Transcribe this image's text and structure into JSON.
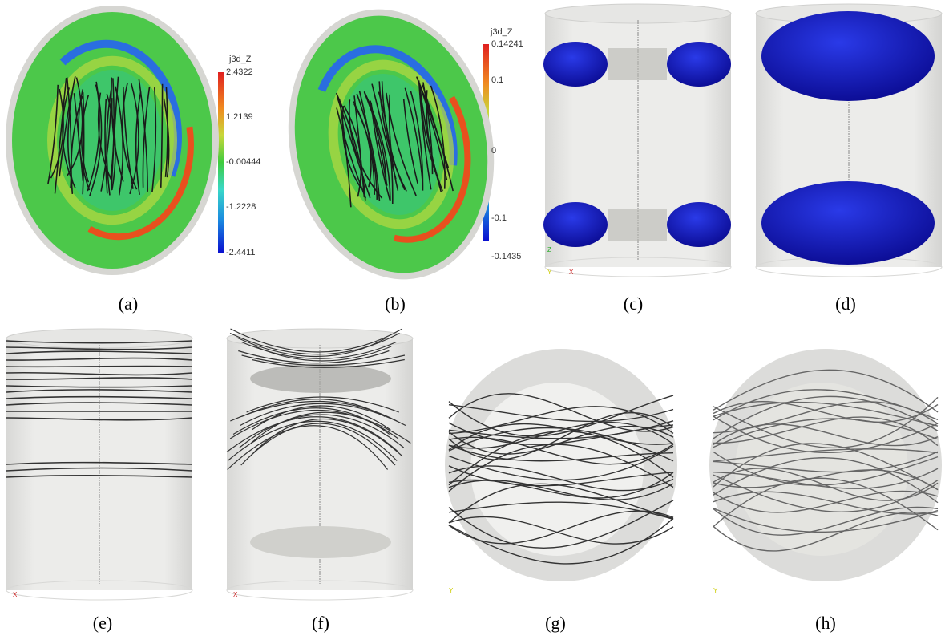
{
  "panels": [
    {
      "caption": "(a)",
      "colorbar": {
        "title": "j3d_Z",
        "labels": [
          "2.4322",
          "1.2139",
          "-0.00444",
          "-1.2228",
          "-2.4411"
        ]
      }
    },
    {
      "caption": "(b)",
      "colorbar": {
        "title": "j3d_Z",
        "labels": [
          "0.14241",
          "0.1",
          "0",
          "-0.1",
          "-0.1435"
        ]
      }
    },
    {
      "caption": "(c)",
      "axes": [
        "Z",
        "Y",
        "X"
      ]
    },
    {
      "caption": "(d)"
    },
    {
      "caption": "(e)",
      "axes": [
        "X"
      ]
    },
    {
      "caption": "(f)",
      "axes": [
        "X"
      ]
    },
    {
      "caption": "(g)",
      "axes": [
        "Y"
      ]
    },
    {
      "caption": "(h)",
      "axes": [
        "Y"
      ]
    }
  ]
}
